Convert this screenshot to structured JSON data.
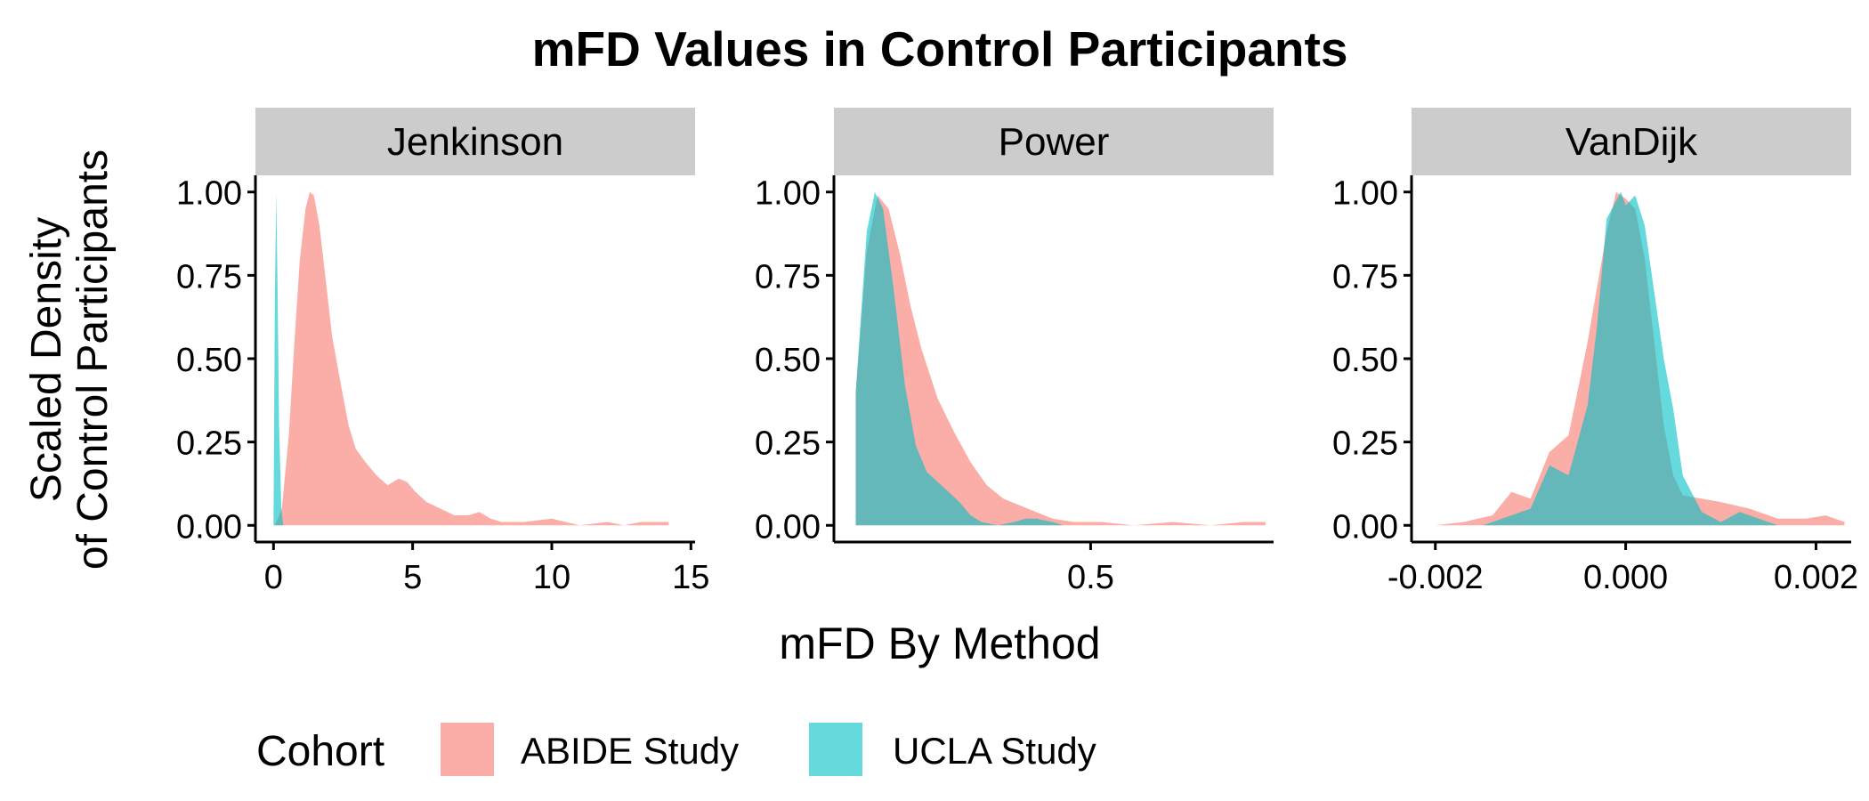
{
  "title": "mFD Values in Control Participants",
  "xlabel": "mFD By Method",
  "ylabel_line1": "Scaled Density",
  "ylabel_line2": "of Control Participants",
  "legend": {
    "title": "Cohort",
    "items": [
      {
        "label": "ABIDE Study",
        "color": "#F8766D"
      },
      {
        "label": "UCLA Study",
        "color": "#00BFC4"
      }
    ]
  },
  "chart_data": [
    {
      "type": "area",
      "panel": "Jenkinson",
      "xlim": [
        -0.65,
        15.15
      ],
      "ylim": [
        -0.05,
        1.05
      ],
      "xticks": [
        0,
        5,
        10,
        15
      ],
      "xtick_labels": [
        "0",
        "5",
        "10",
        "15"
      ],
      "yticks": [
        0,
        0.25,
        0.5,
        0.75,
        1
      ],
      "ytick_labels": [
        "0.00",
        "0.25",
        "0.50",
        "0.75",
        "1.00"
      ],
      "series": [
        {
          "name": "ABIDE Study",
          "x": [
            0.05,
            0.3,
            0.55,
            0.75,
            0.95,
            1.15,
            1.3,
            1.45,
            1.65,
            1.9,
            2.1,
            2.4,
            2.7,
            2.95,
            3.3,
            3.7,
            4.1,
            4.5,
            4.8,
            5.1,
            5.5,
            6.0,
            6.5,
            7.0,
            7.4,
            7.8,
            8.2,
            9.0,
            10.0,
            11.0,
            12.0,
            12.6,
            13.2,
            14.2
          ],
          "y": [
            0.0,
            0.05,
            0.27,
            0.55,
            0.8,
            0.95,
            1.0,
            0.99,
            0.9,
            0.72,
            0.57,
            0.43,
            0.3,
            0.23,
            0.19,
            0.15,
            0.12,
            0.14,
            0.13,
            0.1,
            0.07,
            0.05,
            0.03,
            0.03,
            0.04,
            0.02,
            0.01,
            0.01,
            0.02,
            0.0,
            0.01,
            0.0,
            0.01,
            0.01
          ]
        },
        {
          "name": "UCLA Study",
          "x": [
            0.0,
            0.05,
            0.1,
            0.14,
            0.2,
            0.28,
            0.35
          ],
          "y": [
            0.0,
            0.7,
            1.0,
            0.75,
            0.3,
            0.05,
            0.0
          ]
        }
      ]
    },
    {
      "type": "area",
      "panel": "Power",
      "xlim": [
        0.03,
        0.835
      ],
      "ylim": [
        -0.05,
        1.05
      ],
      "xticks": [
        0.5
      ],
      "xtick_labels": [
        "0.5"
      ],
      "yticks": [
        0,
        0.25,
        0.5,
        0.75,
        1
      ],
      "ytick_labels": [
        "0.00",
        "0.25",
        "0.50",
        "0.75",
        "1.00"
      ],
      "series": [
        {
          "name": "ABIDE Study",
          "x": [
            0.07,
            0.09,
            0.11,
            0.13,
            0.15,
            0.17,
            0.19,
            0.22,
            0.25,
            0.28,
            0.31,
            0.34,
            0.37,
            0.4,
            0.43,
            0.47,
            0.52,
            0.58,
            0.65,
            0.72,
            0.78,
            0.82
          ],
          "y": [
            0.4,
            0.82,
            0.99,
            0.95,
            0.82,
            0.66,
            0.53,
            0.38,
            0.28,
            0.19,
            0.12,
            0.08,
            0.06,
            0.04,
            0.02,
            0.01,
            0.01,
            0.0,
            0.01,
            0.0,
            0.01,
            0.01
          ]
        },
        {
          "name": "UCLA Study",
          "x": [
            0.07,
            0.09,
            0.105,
            0.12,
            0.14,
            0.16,
            0.18,
            0.2,
            0.22,
            0.24,
            0.26,
            0.28,
            0.3,
            0.33,
            0.36,
            0.38,
            0.4,
            0.43,
            0.45,
            0.5
          ],
          "y": [
            0.4,
            0.88,
            1.0,
            0.95,
            0.7,
            0.42,
            0.24,
            0.16,
            0.13,
            0.1,
            0.07,
            0.03,
            0.01,
            0.0,
            0.01,
            0.02,
            0.02,
            0.01,
            0.0,
            0.0
          ]
        }
      ]
    },
    {
      "type": "area",
      "panel": "VanDijk",
      "xlim": [
        -0.00225,
        0.00237
      ],
      "ylim": [
        -0.05,
        1.05
      ],
      "xticks": [
        -0.002,
        0.0,
        0.002
      ],
      "xtick_labels": [
        "-0.002",
        "0.000",
        "0.002"
      ],
      "yticks": [
        0,
        0.25,
        0.5,
        0.75,
        1
      ],
      "ytick_labels": [
        "0.00",
        "0.25",
        "0.50",
        "0.75",
        "1.00"
      ],
      "series": [
        {
          "name": "ABIDE Study",
          "x": [
            -0.002,
            -0.0017,
            -0.0014,
            -0.0012,
            -0.001,
            -0.0008,
            -0.0006,
            -0.0004,
            -0.0002,
            -0.0001,
            0.0,
            0.0001,
            0.0002,
            0.0003,
            0.0004,
            0.0005,
            0.0006,
            0.0008,
            0.001,
            0.0013,
            0.0016,
            0.0019,
            0.0021,
            0.0023
          ],
          "y": [
            0.0,
            0.01,
            0.03,
            0.1,
            0.08,
            0.22,
            0.27,
            0.55,
            0.88,
            1.0,
            0.98,
            0.95,
            0.8,
            0.55,
            0.3,
            0.15,
            0.09,
            0.08,
            0.07,
            0.05,
            0.02,
            0.02,
            0.03,
            0.01
          ]
        },
        {
          "name": "UCLA Study",
          "x": [
            -0.0015,
            -0.0012,
            -0.001,
            -0.0008,
            -0.0006,
            -0.0004,
            -0.0003,
            -0.0002,
            -5e-05,
            0.0,
            0.0001,
            0.0002,
            0.0003,
            0.0004,
            0.0005,
            0.0006,
            0.0008,
            0.001,
            0.0012,
            0.0014,
            0.0016
          ],
          "y": [
            0.0,
            0.03,
            0.05,
            0.18,
            0.15,
            0.36,
            0.6,
            0.92,
            1.0,
            0.96,
            0.99,
            0.9,
            0.7,
            0.5,
            0.35,
            0.15,
            0.04,
            0.01,
            0.04,
            0.02,
            0.0
          ]
        }
      ]
    }
  ]
}
